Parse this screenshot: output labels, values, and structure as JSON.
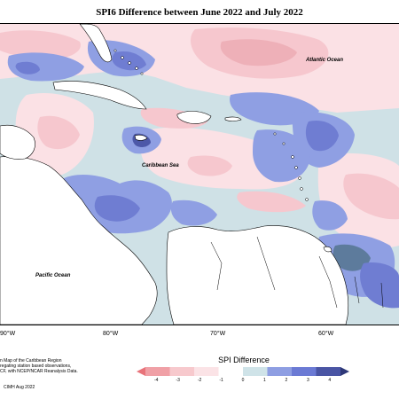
{
  "title": "SPI6 Difference between June 2022 and July 2022",
  "labels": {
    "atlantic": "Atlantic Ocean",
    "caribbean": "Caribbean Sea",
    "pacific": "Pacific Ocean"
  },
  "longitudes": [
    "90°W",
    "80°W",
    "70°W",
    "60°W"
  ],
  "footer": {
    "line1": "n Map of the Caribbean Region",
    "line2": "regating station based observations,",
    "line3": "CF, with NCEP/NCAR Reanalysis Data.",
    "credit": "CIMH Aug 2022"
  },
  "legend": {
    "title": "SPI Difference",
    "ticks": [
      "-4",
      "-3",
      "-2",
      "-1",
      "0",
      "1",
      "2",
      "3",
      "4"
    ],
    "colors": [
      "#e8737a",
      "#f0a0a6",
      "#f7c9cd",
      "#fbe3e6",
      "#ffffff",
      "#cfe3e8",
      "#8e9ee2",
      "#6b7ad4",
      "#4a55a4",
      "#2e3878"
    ]
  },
  "colors": {
    "dry_light": "#fbe1e5",
    "dry_mid": "#f6c7ce",
    "dry_strong": "#ec9ca5",
    "neutral": "#cfe1e6",
    "wet_light": "#8f9fe3",
    "wet_mid": "#6f7dd2",
    "wet_strong": "#4d58a8",
    "wet_teal": "#5d7b9c"
  }
}
